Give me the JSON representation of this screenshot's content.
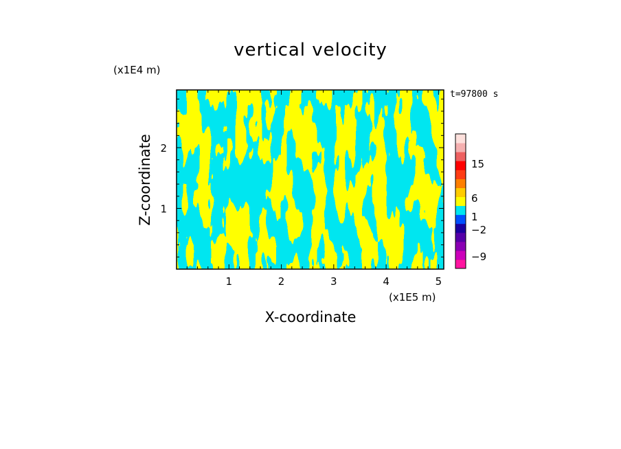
{
  "chart_data": {
    "type": "heatmap",
    "title": "vertical velocity",
    "xlabel": "X-coordinate",
    "ylabel": "Z-coordinate",
    "x_unit": "(x1E5 m)",
    "z_unit": "(x1E4 m)",
    "time_label": "t=97800 s",
    "xlim": [
      0,
      5.1
    ],
    "zlim": [
      0,
      2.95
    ],
    "x_ticks": [
      1,
      2,
      3,
      4,
      5
    ],
    "x_tick_labels": [
      "1",
      "2",
      "3",
      "4",
      "5"
    ],
    "z_ticks": [
      1,
      2
    ],
    "z_tick_labels": [
      "1",
      "2"
    ],
    "field_colors": {
      "negative": "#00e6f0",
      "positive": "#ffff00"
    },
    "colorbar": {
      "tick_labels": [
        "15",
        "6",
        "1",
        "−2",
        "−9"
      ],
      "tick_values": [
        15,
        6,
        1,
        -2,
        -9
      ],
      "levels": [
        {
          "color": "#ff14a0"
        },
        {
          "color": "#cc00bb"
        },
        {
          "color": "#8a00b4"
        },
        {
          "color": "#5500a8"
        },
        {
          "color": "#1a00a0"
        },
        {
          "color": "#0050ff"
        },
        {
          "color": "#00e6f0"
        },
        {
          "color": "#ffff00"
        },
        {
          "color": "#ffcc00"
        },
        {
          "color": "#ff7f00"
        },
        {
          "color": "#ff3c14"
        },
        {
          "color": "#ff0000"
        },
        {
          "color": "#ee6060"
        },
        {
          "color": "#f5b0b0"
        },
        {
          "color": "#fde0dc"
        }
      ]
    }
  }
}
